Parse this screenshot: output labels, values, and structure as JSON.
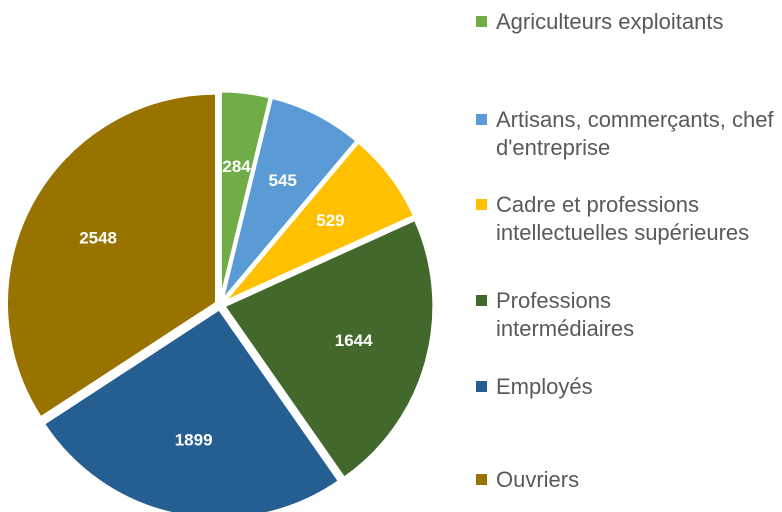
{
  "chart_data": {
    "type": "pie",
    "categories": [
      "Agriculteurs exploitants",
      "Artisans, commerçants, chef d'entreprise",
      "Cadre et professions intellectuelles supérieures",
      "Professions intermédiaires",
      "Employés",
      "Ouvriers"
    ],
    "values": [
      284,
      545,
      529,
      1644,
      1899,
      2548
    ],
    "colors": [
      "#70ad47",
      "#5b9bd5",
      "#ffc000",
      "#43682b",
      "#255e91",
      "#997300"
    ],
    "legend": "right"
  }
}
